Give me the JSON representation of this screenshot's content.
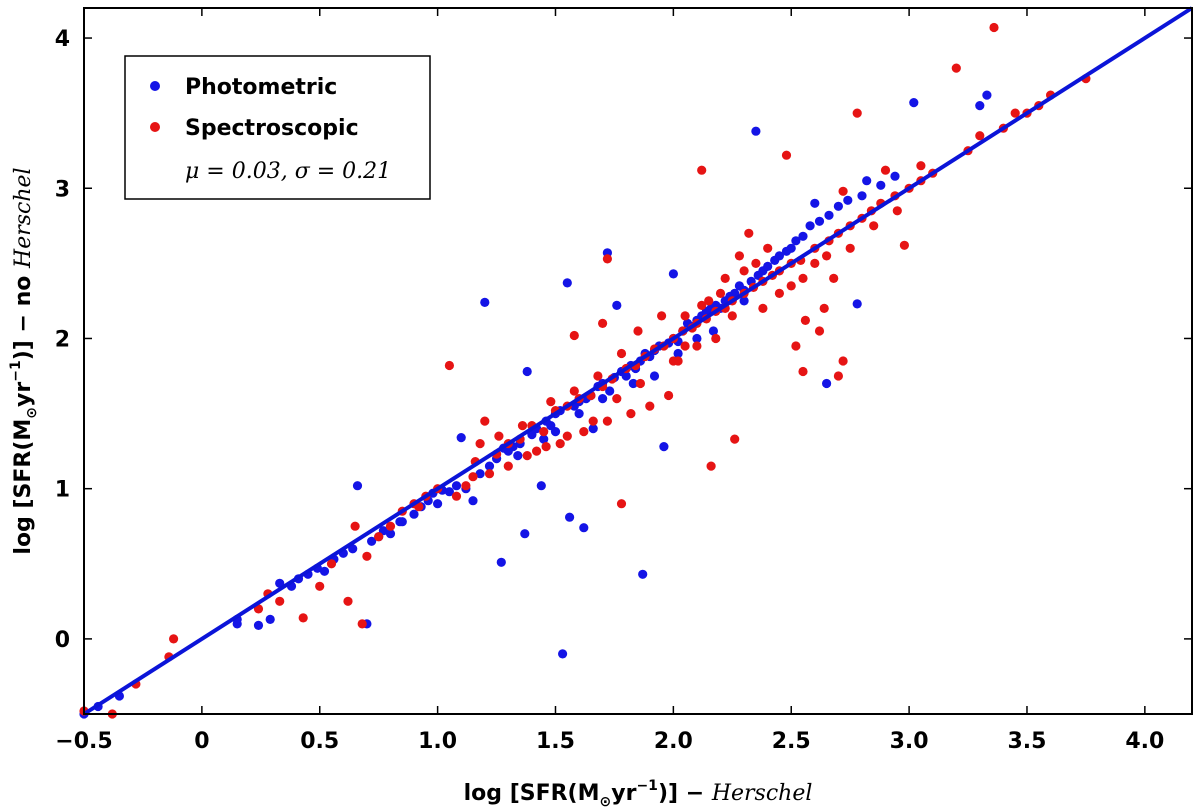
{
  "chart_data": {
    "type": "scatter",
    "title": "",
    "xlabel_main": "log [SFR(M",
    "xlabel_sun": "⊙",
    "xlabel_mid": "yr",
    "xlabel_exp": "−1",
    "xlabel_close": ")] − ",
    "xlabel_ital": "Herschel",
    "ylabel_main": "log [SFR(M",
    "ylabel_sun": "⊙",
    "ylabel_mid": "yr",
    "ylabel_exp": "−1",
    "ylabel_close": ")] − no ",
    "ylabel_ital": "Herschel",
    "xlim": [
      -0.5,
      4.2
    ],
    "ylim": [
      -0.5,
      4.2
    ],
    "xticks": [
      -0.5,
      0,
      0.5,
      1.0,
      1.5,
      2.0,
      2.5,
      3.0,
      3.5,
      4.0
    ],
    "xtick_labels": [
      "−0.5",
      "0",
      "0.5",
      "1.0",
      "1.5",
      "2.0",
      "2.5",
      "3.0",
      "3.5",
      "4.0"
    ],
    "yticks": [
      0,
      1,
      2,
      3,
      4
    ],
    "ytick_labels": [
      "0",
      "1",
      "2",
      "3",
      "4"
    ],
    "legend": {
      "position": "top-left",
      "entries": [
        "Photometric",
        "Spectroscopic"
      ],
      "stats": "μ = 0.03, σ = 0.21"
    },
    "fit_line": {
      "x": [
        -0.5,
        4.2
      ],
      "y": [
        -0.5,
        4.2
      ],
      "color": "#0b14d8"
    },
    "series": [
      {
        "name": "Photometric",
        "color": "#1414e6",
        "points": [
          [
            -0.44,
            -0.45
          ],
          [
            -0.35,
            -0.38
          ],
          [
            -0.5,
            -0.5
          ],
          [
            0.15,
            0.1
          ],
          [
            0.15,
            0.13
          ],
          [
            0.24,
            0.09
          ],
          [
            0.29,
            0.13
          ],
          [
            0.33,
            0.37
          ],
          [
            0.38,
            0.35
          ],
          [
            0.41,
            0.4
          ],
          [
            0.45,
            0.43
          ],
          [
            0.49,
            0.47
          ],
          [
            0.52,
            0.45
          ],
          [
            0.56,
            0.53
          ],
          [
            0.6,
            0.57
          ],
          [
            0.64,
            0.6
          ],
          [
            0.66,
            1.02
          ],
          [
            0.7,
            0.1
          ],
          [
            0.72,
            0.65
          ],
          [
            0.77,
            0.72
          ],
          [
            0.8,
            0.7
          ],
          [
            0.84,
            0.78
          ],
          [
            0.9,
            0.83
          ],
          [
            0.93,
            0.88
          ],
          [
            0.96,
            0.92
          ],
          [
            0.98,
            0.97
          ],
          [
            1.02,
            0.99
          ],
          [
            1.05,
            0.98
          ],
          [
            1.08,
            1.02
          ],
          [
            1.1,
            1.34
          ],
          [
            1.12,
            1.0
          ],
          [
            1.15,
            0.92
          ],
          [
            1.18,
            1.1
          ],
          [
            1.2,
            2.24
          ],
          [
            1.22,
            1.15
          ],
          [
            1.25,
            1.2
          ],
          [
            1.27,
            0.51
          ],
          [
            1.3,
            1.25
          ],
          [
            1.32,
            1.28
          ],
          [
            1.35,
            1.3
          ],
          [
            1.37,
            0.7
          ],
          [
            1.38,
            1.78
          ],
          [
            1.4,
            1.36
          ],
          [
            1.42,
            1.4
          ],
          [
            1.44,
            1.02
          ],
          [
            1.46,
            1.45
          ],
          [
            1.48,
            1.42
          ],
          [
            1.5,
            1.5
          ],
          [
            1.52,
            1.52
          ],
          [
            1.53,
            -0.1
          ],
          [
            1.55,
            2.37
          ],
          [
            1.56,
            0.81
          ],
          [
            1.58,
            1.55
          ],
          [
            1.6,
            1.58
          ],
          [
            1.62,
            0.74
          ],
          [
            1.63,
            1.6
          ],
          [
            1.65,
            1.62
          ],
          [
            1.66,
            1.4
          ],
          [
            1.68,
            1.68
          ],
          [
            1.7,
            1.7
          ],
          [
            1.72,
            2.57
          ],
          [
            1.73,
            1.65
          ],
          [
            1.75,
            1.74
          ],
          [
            1.76,
            2.22
          ],
          [
            1.78,
            1.78
          ],
          [
            1.8,
            1.75
          ],
          [
            1.82,
            1.82
          ],
          [
            1.84,
            1.8
          ],
          [
            1.86,
            1.85
          ],
          [
            1.87,
            0.43
          ],
          [
            1.88,
            1.9
          ],
          [
            1.9,
            1.88
          ],
          [
            1.92,
            1.92
          ],
          [
            1.94,
            1.95
          ],
          [
            1.96,
            1.28
          ],
          [
            1.98,
            1.97
          ],
          [
            2.0,
            2.0
          ],
          [
            2.0,
            2.43
          ],
          [
            2.02,
            1.98
          ],
          [
            2.04,
            2.05
          ],
          [
            2.06,
            2.1
          ],
          [
            2.08,
            2.08
          ],
          [
            2.1,
            2.12
          ],
          [
            2.12,
            2.15
          ],
          [
            2.14,
            2.18
          ],
          [
            2.16,
            2.2
          ],
          [
            2.18,
            2.22
          ],
          [
            2.2,
            2.2
          ],
          [
            2.22,
            2.25
          ],
          [
            2.24,
            2.28
          ],
          [
            2.26,
            2.3
          ],
          [
            2.28,
            2.35
          ],
          [
            2.3,
            2.32
          ],
          [
            2.33,
            2.38
          ],
          [
            2.35,
            3.38
          ],
          [
            2.36,
            2.42
          ],
          [
            2.38,
            2.45
          ],
          [
            2.4,
            2.48
          ],
          [
            2.43,
            2.52
          ],
          [
            2.45,
            2.55
          ],
          [
            2.48,
            2.58
          ],
          [
            2.5,
            2.6
          ],
          [
            2.52,
            2.65
          ],
          [
            2.55,
            2.68
          ],
          [
            2.58,
            2.75
          ],
          [
            2.6,
            2.9
          ],
          [
            2.62,
            2.78
          ],
          [
            2.65,
            1.7
          ],
          [
            2.66,
            2.82
          ],
          [
            2.7,
            2.88
          ],
          [
            2.74,
            2.92
          ],
          [
            2.78,
            2.23
          ],
          [
            2.8,
            2.95
          ],
          [
            2.82,
            3.05
          ],
          [
            2.88,
            3.02
          ],
          [
            2.94,
            3.08
          ],
          [
            3.02,
            3.57
          ],
          [
            3.3,
            3.55
          ],
          [
            3.33,
            3.62
          ],
          [
            1.28,
            1.27
          ],
          [
            1.34,
            1.22
          ],
          [
            1.45,
            1.33
          ],
          [
            1.7,
            1.6
          ],
          [
            1.83,
            1.7
          ],
          [
            1.92,
            1.75
          ],
          [
            2.02,
            1.9
          ],
          [
            2.1,
            2.0
          ],
          [
            2.17,
            2.05
          ],
          [
            2.3,
            2.25
          ],
          [
            1.6,
            1.5
          ],
          [
            1.5,
            1.38
          ],
          [
            1.0,
            0.9
          ],
          [
            0.85,
            0.78
          ],
          [
            0.75,
            0.68
          ]
        ]
      },
      {
        "name": "Spectroscopic",
        "color": "#e61414",
        "points": [
          [
            -0.5,
            -0.48
          ],
          [
            -0.38,
            -0.5
          ],
          [
            -0.28,
            -0.3
          ],
          [
            -0.14,
            -0.12
          ],
          [
            -0.12,
            0.0
          ],
          [
            0.24,
            0.2
          ],
          [
            0.28,
            0.3
          ],
          [
            0.33,
            0.25
          ],
          [
            0.43,
            0.14
          ],
          [
            0.5,
            0.35
          ],
          [
            0.55,
            0.5
          ],
          [
            0.62,
            0.25
          ],
          [
            0.65,
            0.75
          ],
          [
            0.68,
            0.1
          ],
          [
            0.7,
            0.55
          ],
          [
            0.75,
            0.68
          ],
          [
            0.8,
            0.75
          ],
          [
            0.85,
            0.85
          ],
          [
            0.9,
            0.9
          ],
          [
            0.95,
            0.95
          ],
          [
            1.05,
            1.82
          ],
          [
            1.08,
            0.95
          ],
          [
            1.12,
            1.02
          ],
          [
            1.16,
            1.18
          ],
          [
            1.2,
            1.45
          ],
          [
            1.25,
            1.23
          ],
          [
            1.3,
            1.3
          ],
          [
            1.35,
            1.33
          ],
          [
            1.4,
            1.42
          ],
          [
            1.45,
            1.38
          ],
          [
            1.5,
            1.52
          ],
          [
            1.55,
            1.55
          ],
          [
            1.58,
            2.02
          ],
          [
            1.6,
            1.6
          ],
          [
            1.65,
            1.62
          ],
          [
            1.7,
            1.68
          ],
          [
            1.72,
            2.53
          ],
          [
            1.74,
            1.73
          ],
          [
            1.78,
            0.9
          ],
          [
            1.8,
            1.8
          ],
          [
            1.84,
            1.82
          ],
          [
            1.88,
            1.88
          ],
          [
            1.9,
            1.55
          ],
          [
            1.92,
            1.93
          ],
          [
            1.96,
            1.95
          ],
          [
            2.0,
            2.0
          ],
          [
            2.04,
            2.05
          ],
          [
            2.08,
            2.07
          ],
          [
            2.1,
            2.1
          ],
          [
            2.12,
            3.12
          ],
          [
            2.14,
            2.13
          ],
          [
            2.16,
            1.15
          ],
          [
            2.18,
            2.18
          ],
          [
            2.22,
            2.2
          ],
          [
            2.25,
            2.25
          ],
          [
            2.26,
            1.33
          ],
          [
            2.3,
            2.3
          ],
          [
            2.32,
            2.7
          ],
          [
            2.34,
            2.34
          ],
          [
            2.38,
            2.38
          ],
          [
            2.42,
            2.42
          ],
          [
            2.45,
            2.45
          ],
          [
            2.48,
            3.22
          ],
          [
            2.5,
            2.5
          ],
          [
            2.54,
            2.52
          ],
          [
            2.56,
            2.12
          ],
          [
            2.6,
            2.6
          ],
          [
            2.64,
            2.2
          ],
          [
            2.66,
            2.65
          ],
          [
            2.7,
            2.7
          ],
          [
            2.72,
            2.98
          ],
          [
            2.75,
            2.75
          ],
          [
            2.78,
            3.5
          ],
          [
            2.8,
            2.8
          ],
          [
            2.84,
            2.85
          ],
          [
            2.88,
            2.9
          ],
          [
            2.9,
            3.12
          ],
          [
            2.94,
            2.95
          ],
          [
            2.98,
            2.62
          ],
          [
            3.0,
            3.0
          ],
          [
            3.05,
            3.05
          ],
          [
            3.1,
            3.1
          ],
          [
            3.2,
            3.8
          ],
          [
            3.25,
            3.25
          ],
          [
            3.3,
            3.35
          ],
          [
            3.36,
            4.07
          ],
          [
            3.4,
            3.4
          ],
          [
            3.45,
            3.5
          ],
          [
            3.5,
            3.5
          ],
          [
            3.55,
            3.55
          ],
          [
            3.6,
            3.62
          ],
          [
            3.75,
            3.73
          ],
          [
            2.55,
            1.78
          ],
          [
            2.7,
            1.75
          ],
          [
            2.1,
            1.95
          ],
          [
            2.2,
            2.3
          ],
          [
            1.98,
            1.62
          ],
          [
            1.86,
            1.7
          ],
          [
            1.76,
            1.6
          ],
          [
            1.66,
            1.45
          ],
          [
            1.55,
            1.35
          ],
          [
            1.46,
            1.28
          ],
          [
            1.38,
            1.22
          ],
          [
            1.3,
            1.15
          ],
          [
            1.22,
            1.1
          ],
          [
            1.15,
            1.08
          ],
          [
            1.0,
            1.0
          ],
          [
            0.92,
            0.88
          ],
          [
            2.0,
            1.85
          ],
          [
            2.05,
            2.15
          ],
          [
            2.15,
            2.25
          ],
          [
            2.25,
            2.15
          ],
          [
            2.35,
            2.5
          ],
          [
            2.45,
            2.3
          ],
          [
            2.55,
            2.4
          ],
          [
            2.65,
            2.55
          ],
          [
            2.75,
            2.6
          ],
          [
            2.85,
            2.75
          ],
          [
            2.95,
            2.85
          ],
          [
            3.05,
            3.15
          ],
          [
            1.7,
            2.1
          ],
          [
            1.85,
            2.05
          ],
          [
            1.95,
            2.15
          ],
          [
            2.05,
            1.95
          ],
          [
            2.18,
            2.0
          ],
          [
            2.3,
            2.45
          ],
          [
            2.4,
            2.6
          ],
          [
            2.5,
            2.35
          ],
          [
            2.6,
            2.5
          ],
          [
            2.68,
            2.4
          ],
          [
            2.72,
            1.85
          ],
          [
            2.62,
            2.05
          ],
          [
            2.52,
            1.95
          ],
          [
            1.82,
            1.5
          ],
          [
            1.72,
            1.45
          ],
          [
            1.62,
            1.38
          ],
          [
            1.52,
            1.3
          ],
          [
            1.42,
            1.25
          ],
          [
            1.78,
            1.9
          ],
          [
            1.68,
            1.75
          ],
          [
            1.58,
            1.65
          ],
          [
            1.48,
            1.58
          ],
          [
            1.36,
            1.42
          ],
          [
            1.26,
            1.35
          ],
          [
            1.18,
            1.3
          ],
          [
            2.02,
            1.85
          ],
          [
            2.12,
            2.22
          ],
          [
            2.22,
            2.4
          ],
          [
            2.28,
            2.55
          ],
          [
            2.38,
            2.2
          ]
        ]
      }
    ]
  }
}
